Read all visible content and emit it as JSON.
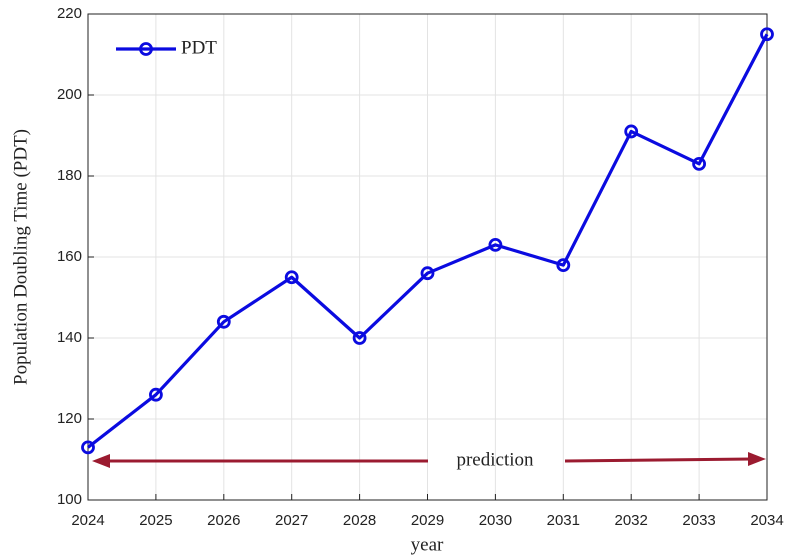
{
  "chart_data": {
    "type": "line",
    "x_label": "year",
    "y_label": "Population Doubling Time (PDT)",
    "x": [
      2024,
      2025,
      2026,
      2027,
      2028,
      2029,
      2030,
      2031,
      2032,
      2033,
      2034
    ],
    "series": [
      {
        "name": "PDT",
        "color": "#0b0be0",
        "values": [
          113,
          126,
          144,
          155,
          140,
          156,
          163,
          158,
          191,
          183,
          215
        ]
      }
    ],
    "xlim": [
      2024,
      2034
    ],
    "xticks": [
      2024,
      2025,
      2026,
      2027,
      2028,
      2029,
      2030,
      2031,
      2032,
      2033,
      2034
    ],
    "ylim": [
      100,
      220
    ],
    "yticks": [
      100,
      120,
      140,
      160,
      180,
      200,
      220
    ],
    "grid": true,
    "legend": "upper left",
    "annotation": "prediction",
    "annotation_color": "#9b1b30"
  }
}
